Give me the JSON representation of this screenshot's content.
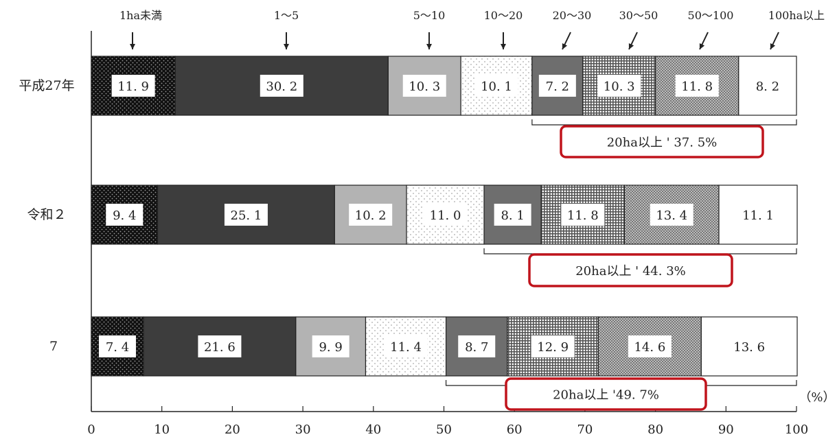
{
  "chart_data": {
    "type": "bar",
    "orientation": "horizontal",
    "stacked": true,
    "percent_stacked": true,
    "categories": [
      "平成27年",
      "令和２",
      "7"
    ],
    "series": [
      {
        "name": "1ha未満",
        "values": [
          11.9,
          9.4,
          7.4
        ],
        "fill": "#111111",
        "pattern": "dots-light"
      },
      {
        "name": "1～5",
        "values": [
          30.2,
          25.1,
          21.6
        ],
        "fill": "#3d3d3d",
        "pattern": "none"
      },
      {
        "name": "5～10",
        "values": [
          10.3,
          10.2,
          9.9
        ],
        "fill": "#b3b3b3",
        "pattern": "none"
      },
      {
        "name": "10～20",
        "values": [
          10.1,
          11.0,
          11.4
        ],
        "fill": "#ffffff",
        "pattern": "dots-sparse"
      },
      {
        "name": "20～30",
        "values": [
          7.2,
          8.1,
          8.7
        ],
        "fill": "#6e6e6e",
        "pattern": "none"
      },
      {
        "name": "30～50",
        "values": [
          10.3,
          11.8,
          12.9
        ],
        "fill": "#ffffff",
        "pattern": "grid"
      },
      {
        "name": "50～100",
        "values": [
          11.8,
          13.4,
          14.6
        ],
        "fill": "#ffffff",
        "pattern": "dots-dense"
      },
      {
        "name": "100ha以上",
        "values": [
          8.2,
          11.1,
          13.6
        ],
        "fill": "#ffffff",
        "pattern": "none"
      }
    ],
    "value_labels": [
      [
        "11. 9",
        "30. 2",
        "10. 3",
        "10. 1",
        "7. 2",
        "10. 3",
        "11. 8",
        "8. 2"
      ],
      [
        "9. 4",
        "25. 1",
        "10. 2",
        "11. 0",
        "8. 1",
        "11. 8",
        "13. 4",
        "11. 1"
      ],
      [
        "7. 4",
        "21. 6",
        "9. 9",
        "11. 4",
        "8. 7",
        "12. 9",
        "14. 6",
        "13. 6"
      ]
    ],
    "brackets": [
      {
        "from_series": 4,
        "label": "20ha以上 ' 37. 5%",
        "value": 37.5
      },
      {
        "from_series": 4,
        "label": "20ha以上 ' 44. 3%",
        "value": 44.3
      },
      {
        "from_series": 4,
        "label": "20ha以上 '49. 7%",
        "value": 49.7
      }
    ],
    "xlim": [
      0,
      100
    ],
    "xticks": [
      0,
      10,
      20,
      30,
      40,
      50,
      60,
      70,
      80,
      90,
      100
    ],
    "xunit": "（%）",
    "legend_placement": "top, arrows pointing to segments of the first bar",
    "highlight_color": "#c0141c",
    "grid": false
  }
}
